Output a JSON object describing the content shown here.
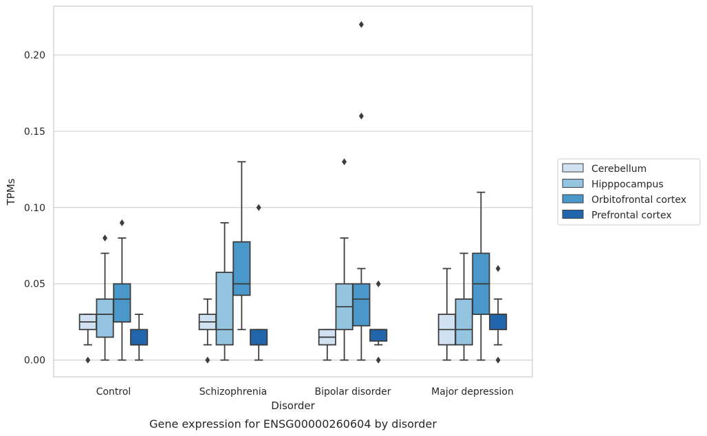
{
  "chart_data": {
    "type": "box",
    "title": "",
    "caption": "Gene expression for ENSG00000260604 by disorder",
    "xlabel": "Disorder",
    "ylabel": "TPMs",
    "ylim": [
      -0.011,
      0.232
    ],
    "yticks": [
      "0.00",
      "0.05",
      "0.10",
      "0.15",
      "0.20"
    ],
    "ytick_values": [
      0,
      0.05,
      0.1,
      0.15,
      0.2
    ],
    "grid": "horizontal",
    "legend_position": "right",
    "categories": [
      "Control",
      "Schizophrenia",
      "Bipolar disorder",
      "Major depression"
    ],
    "series": [
      {
        "name": "Cerebellum",
        "color": "#d0e1f2",
        "boxes": [
          {
            "whislo": 0.01,
            "q1": 0.02,
            "med": 0.025,
            "q3": 0.03,
            "whishi": 0.03,
            "fliers": [
              0.0
            ]
          },
          {
            "whislo": 0.01,
            "q1": 0.02,
            "med": 0.025,
            "q3": 0.03,
            "whishi": 0.04,
            "fliers": [
              0.0
            ]
          },
          {
            "whislo": 0.0,
            "q1": 0.01,
            "med": 0.015,
            "q3": 0.02,
            "whishi": 0.02,
            "fliers": []
          },
          {
            "whislo": 0.0,
            "q1": 0.01,
            "med": 0.02,
            "q3": 0.03,
            "whishi": 0.06,
            "fliers": []
          }
        ]
      },
      {
        "name": "Hipppocampus",
        "color": "#94c4df",
        "boxes": [
          {
            "whislo": 0.0,
            "q1": 0.015,
            "med": 0.03,
            "q3": 0.04,
            "whishi": 0.07,
            "fliers": [
              0.08
            ]
          },
          {
            "whislo": 0.0,
            "q1": 0.01,
            "med": 0.02,
            "q3": 0.0575,
            "whishi": 0.09,
            "fliers": []
          },
          {
            "whislo": 0.0,
            "q1": 0.02,
            "med": 0.035,
            "q3": 0.05,
            "whishi": 0.08,
            "fliers": [
              0.13
            ]
          },
          {
            "whislo": 0.0,
            "q1": 0.01,
            "med": 0.02,
            "q3": 0.04,
            "whishi": 0.07,
            "fliers": []
          }
        ]
      },
      {
        "name": "Orbitofrontal cortex",
        "color": "#4a98c9",
        "boxes": [
          {
            "whislo": 0.0,
            "q1": 0.025,
            "med": 0.04,
            "q3": 0.05,
            "whishi": 0.08,
            "fliers": [
              0.09
            ]
          },
          {
            "whislo": 0.02,
            "q1": 0.0425,
            "med": 0.05,
            "q3": 0.0775,
            "whishi": 0.13,
            "fliers": []
          },
          {
            "whislo": 0.0,
            "q1": 0.0225,
            "med": 0.04,
            "q3": 0.05,
            "whishi": 0.06,
            "fliers": [
              0.16,
              0.22
            ]
          },
          {
            "whislo": 0.0,
            "q1": 0.03,
            "med": 0.05,
            "q3": 0.07,
            "whishi": 0.11,
            "fliers": []
          }
        ]
      },
      {
        "name": "Prefrontal cortex",
        "color": "#2166ac",
        "boxes": [
          {
            "whislo": 0.0,
            "q1": 0.01,
            "med": 0.01,
            "q3": 0.02,
            "whishi": 0.03,
            "fliers": []
          },
          {
            "whislo": 0.0,
            "q1": 0.01,
            "med": 0.01,
            "q3": 0.02,
            "whishi": 0.02,
            "fliers": [
              0.1
            ]
          },
          {
            "whislo": 0.01,
            "q1": 0.0125,
            "med": 0.02,
            "q3": 0.02,
            "whishi": 0.02,
            "fliers": [
              0.0,
              0.05
            ]
          },
          {
            "whislo": 0.01,
            "q1": 0.02,
            "med": 0.03,
            "q3": 0.03,
            "whishi": 0.04,
            "fliers": [
              0.0,
              0.06
            ]
          }
        ]
      }
    ]
  }
}
